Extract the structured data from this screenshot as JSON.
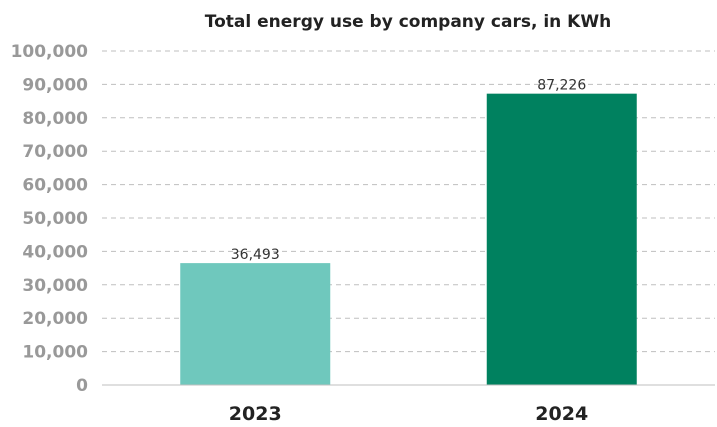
{
  "chart_data": {
    "type": "bar",
    "title": "Total energy use by company cars, in KWh",
    "xlabel": "",
    "ylabel": "",
    "categories": [
      "2023",
      "2024"
    ],
    "values": [
      36493,
      87226
    ],
    "data_labels": [
      "36,493",
      "87,226"
    ],
    "ylim": [
      0,
      100000
    ],
    "yticks": [
      0,
      10000,
      20000,
      30000,
      40000,
      50000,
      60000,
      70000,
      80000,
      90000,
      100000
    ],
    "ytick_labels": [
      "0",
      "10,000",
      "20,000",
      "30,000",
      "40,000",
      "50,000",
      "60,000",
      "70,000",
      "80,000",
      "90,000",
      "100,000"
    ],
    "grid": true,
    "legend": "none",
    "colors": [
      "#6fc8bd",
      "#00815f"
    ]
  }
}
